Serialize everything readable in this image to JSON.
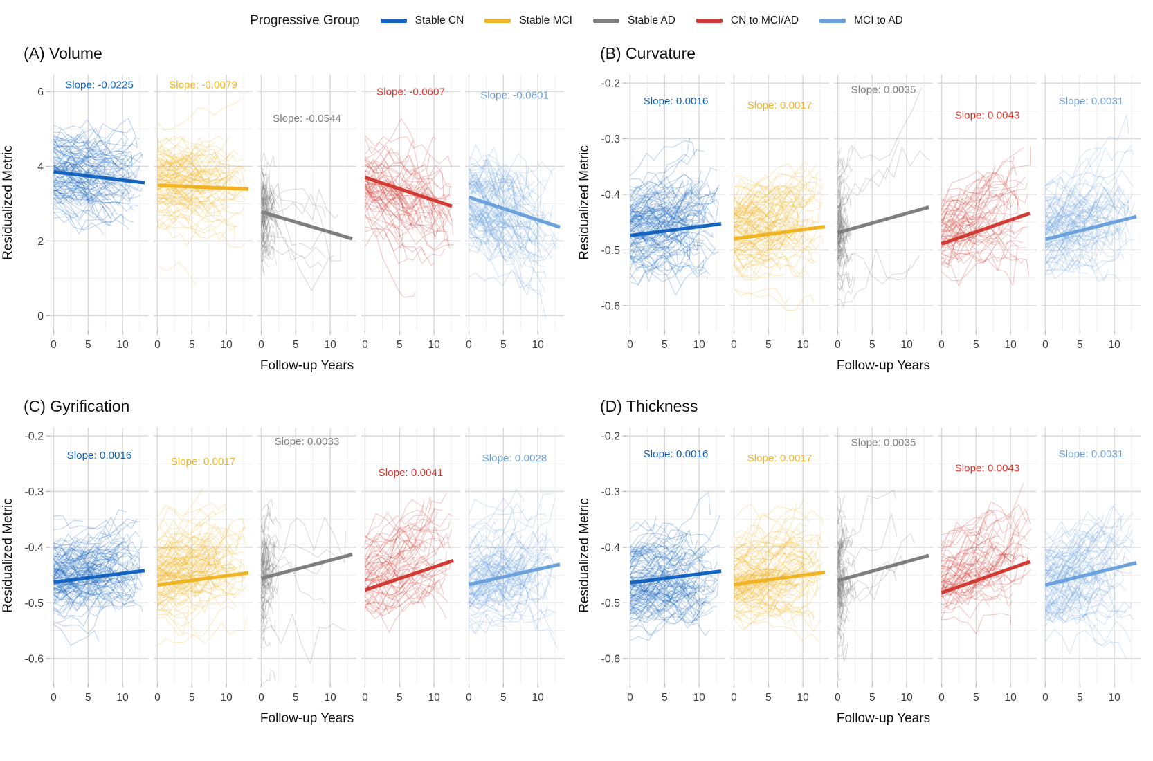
{
  "legend": {
    "title": "Progressive Group",
    "items": [
      {
        "label": "Stable CN",
        "color": "#1565C0"
      },
      {
        "label": "Stable MCI",
        "color": "#F0B323"
      },
      {
        "label": "Stable AD",
        "color": "#7F7F7F"
      },
      {
        "label": "CN to MCI/AD",
        "color": "#D23B33"
      },
      {
        "label": "MCI to AD",
        "color": "#6BA2DE"
      }
    ]
  },
  "chart_data": [
    {
      "id": "a",
      "type": "line",
      "title": "(A) Volume",
      "xlabel": "Follow-up Years",
      "ylabel": "Residualized Metric",
      "x_range": [
        -0.55,
        13.8
      ],
      "x_tick_values": [
        0,
        5,
        10
      ],
      "x_tick_labels": [
        "0",
        "5",
        "10"
      ],
      "x_minor": [
        2.5,
        7.5,
        12.5
      ],
      "y_range": [
        -0.4,
        6.45
      ],
      "y_tick_values": [
        0,
        2,
        4,
        6
      ],
      "y_tick_labels": [
        "0",
        "2",
        "4",
        "6"
      ],
      "y_minor": [
        1,
        3,
        5
      ],
      "grid": true,
      "legend_position": "top-shared",
      "facets": [
        {
          "group": "Stable CN",
          "color": "#1565C0",
          "slope": -0.0225,
          "slope_label": "Slope: -0.0225",
          "label_y": 6.18,
          "trend": {
            "x0": 0,
            "y0": 3.85,
            "x1": 13.2,
            "y1": 3.56
          },
          "sim": {
            "seed": 101,
            "n": 105,
            "center": 3.95,
            "sd": 0.52,
            "slope": -0.0225,
            "slope_sd": 0.03,
            "wiggle": 0.16,
            "fu_min": 2.5,
            "fu_max": 13,
            "short": false,
            "n_long": 0
          }
        },
        {
          "group": "Stable MCI",
          "color": "#F0B323",
          "slope": -0.0079,
          "slope_label": "Slope: -0.0079",
          "label_y": 6.18,
          "trend": {
            "x0": 0,
            "y0": 3.49,
            "x1": 13.2,
            "y1": 3.39
          },
          "sim": {
            "seed": 102,
            "n": 105,
            "center": 3.55,
            "sd": 0.6,
            "slope": -0.008,
            "slope_sd": 0.03,
            "wiggle": 0.16,
            "fu_min": 2.5,
            "fu_max": 13,
            "short": false,
            "n_long": 0
          }
        },
        {
          "group": "Stable AD",
          "color": "#7F7F7F",
          "slope": -0.0544,
          "slope_label": "Slope: -0.0544",
          "label_y": 5.28,
          "trend": {
            "x0": 0,
            "y0": 2.78,
            "x1": 13.2,
            "y1": 2.06
          },
          "sim": {
            "seed": 103,
            "n": 135,
            "center": 2.7,
            "sd": 0.62,
            "slope": -0.05,
            "slope_sd": 0.05,
            "wiggle": 0.3,
            "fu_min": 0.3,
            "fu_max": 2.2,
            "short": true,
            "n_long": 7
          }
        },
        {
          "group": "CN to MCI/AD",
          "color": "#D23B33",
          "slope": -0.0607,
          "slope_label": "Slope: -0.0607",
          "label_y": 6.0,
          "trend": {
            "x0": 0,
            "y0": 3.7,
            "x1": 12.6,
            "y1": 2.93
          },
          "sim": {
            "seed": 104,
            "n": 62,
            "center": 3.45,
            "sd": 0.58,
            "slope": -0.06,
            "slope_sd": 0.035,
            "wiggle": 0.24,
            "fu_min": 4,
            "fu_max": 13,
            "short": false,
            "n_long": 0
          }
        },
        {
          "group": "MCI to AD",
          "color": "#6BA2DE",
          "slope": -0.0601,
          "slope_label": "Slope: -0.0601",
          "label_y": 5.9,
          "trend": {
            "x0": 0,
            "y0": 3.17,
            "x1": 13.2,
            "y1": 2.37
          },
          "sim": {
            "seed": 105,
            "n": 92,
            "center": 3.0,
            "sd": 0.72,
            "slope": -0.06,
            "slope_sd": 0.04,
            "wiggle": 0.28,
            "fu_min": 3,
            "fu_max": 13,
            "short": false,
            "n_long": 0
          }
        }
      ]
    },
    {
      "id": "b",
      "type": "line",
      "title": "(B) Curvature",
      "xlabel": "Follow-up Years",
      "ylabel": "Residualized Metric",
      "x_range": [
        -0.55,
        13.8
      ],
      "x_tick_values": [
        0,
        5,
        10
      ],
      "x_tick_labels": [
        "0",
        "5",
        "10"
      ],
      "x_minor": [
        2.5,
        7.5,
        12.5
      ],
      "y_range": [
        -0.645,
        -0.185
      ],
      "y_tick_values": [
        -0.2,
        -0.3,
        -0.4,
        -0.5,
        -0.6
      ],
      "y_tick_labels": [
        "-0.2",
        "-0.3",
        "-0.4",
        "-0.5",
        "-0.6"
      ],
      "y_minor": [
        -0.25,
        -0.35,
        -0.45,
        -0.55
      ],
      "grid": true,
      "legend_position": "top-shared",
      "facets": [
        {
          "group": "Stable CN",
          "color": "#1565C0",
          "slope": 0.0016,
          "slope_label": "Slope: 0.0016",
          "label_y": -0.232,
          "trend": {
            "x0": 0,
            "y0": -0.474,
            "x1": 13.2,
            "y1": -0.453
          },
          "sim": {
            "seed": 111,
            "n": 110,
            "center": -0.468,
            "sd": 0.04,
            "slope": 0.0016,
            "slope_sd": 0.0025,
            "wiggle": 0.012,
            "fu_min": 3,
            "fu_max": 13,
            "short": false,
            "n_long": 0
          }
        },
        {
          "group": "Stable MCI",
          "color": "#F0B323",
          "slope": 0.0017,
          "slope_label": "Slope: 0.0017",
          "label_y": -0.24,
          "trend": {
            "x0": 0,
            "y0": -0.48,
            "x1": 13.2,
            "y1": -0.458
          },
          "sim": {
            "seed": 112,
            "n": 110,
            "center": -0.472,
            "sd": 0.04,
            "slope": 0.0017,
            "slope_sd": 0.0025,
            "wiggle": 0.012,
            "fu_min": 3,
            "fu_max": 13,
            "short": false,
            "n_long": 0
          }
        },
        {
          "group": "Stable AD",
          "color": "#7F7F7F",
          "slope": 0.0035,
          "slope_label": "Slope: 0.0035",
          "label_y": -0.212,
          "trend": {
            "x0": 0,
            "y0": -0.469,
            "x1": 13.2,
            "y1": -0.423
          },
          "sim": {
            "seed": 113,
            "n": 135,
            "center": -0.468,
            "sd": 0.05,
            "slope": 0.0035,
            "slope_sd": 0.004,
            "wiggle": 0.02,
            "fu_min": 0.3,
            "fu_max": 2.2,
            "short": true,
            "n_long": 5
          }
        },
        {
          "group": "CN to MCI/AD",
          "color": "#D23B33",
          "slope": 0.0043,
          "slope_label": "Slope: 0.0043",
          "label_y": -0.258,
          "trend": {
            "x0": 0,
            "y0": -0.489,
            "x1": 12.8,
            "y1": -0.434
          },
          "sim": {
            "seed": 114,
            "n": 60,
            "center": -0.465,
            "sd": 0.035,
            "slope": 0.0043,
            "slope_sd": 0.003,
            "wiggle": 0.014,
            "fu_min": 4,
            "fu_max": 13,
            "short": false,
            "n_long": 0
          }
        },
        {
          "group": "MCI to AD",
          "color": "#6BA2DE",
          "slope": 0.0031,
          "slope_label": "Slope: 0.0031",
          "label_y": -0.232,
          "trend": {
            "x0": 0,
            "y0": -0.481,
            "x1": 13.2,
            "y1": -0.44
          },
          "sim": {
            "seed": 115,
            "n": 85,
            "center": -0.468,
            "sd": 0.04,
            "slope": 0.0031,
            "slope_sd": 0.003,
            "wiggle": 0.015,
            "fu_min": 3,
            "fu_max": 13,
            "short": false,
            "n_long": 0
          }
        }
      ]
    },
    {
      "id": "c",
      "type": "line",
      "title": "(C) Gyrification",
      "xlabel": "Follow-up Years",
      "ylabel": "Residualized Metric",
      "x_range": [
        -0.55,
        13.8
      ],
      "x_tick_values": [
        0,
        5,
        10
      ],
      "x_tick_labels": [
        "0",
        "5",
        "10"
      ],
      "x_minor": [
        2.5,
        7.5,
        12.5
      ],
      "y_range": [
        -0.645,
        -0.185
      ],
      "y_tick_values": [
        -0.2,
        -0.3,
        -0.4,
        -0.5,
        -0.6
      ],
      "y_tick_labels": [
        "-0.2",
        "-0.3",
        "-0.4",
        "-0.5",
        "-0.6"
      ],
      "y_minor": [
        -0.25,
        -0.35,
        -0.45,
        -0.55
      ],
      "grid": true,
      "legend_position": "top-shared",
      "facets": [
        {
          "group": "Stable CN",
          "color": "#1565C0",
          "slope": 0.0016,
          "slope_label": "Slope: 0.0016",
          "label_y": -0.235,
          "trend": {
            "x0": 0,
            "y0": -0.463,
            "x1": 13.2,
            "y1": -0.442
          },
          "sim": {
            "seed": 121,
            "n": 110,
            "center": -0.458,
            "sd": 0.04,
            "slope": 0.0016,
            "slope_sd": 0.0025,
            "wiggle": 0.012,
            "fu_min": 3,
            "fu_max": 13,
            "short": false,
            "n_long": 0
          }
        },
        {
          "group": "Stable MCI",
          "color": "#F0B323",
          "slope": 0.0017,
          "slope_label": "Slope: 0.0017",
          "label_y": -0.246,
          "trend": {
            "x0": 0,
            "y0": -0.468,
            "x1": 13.2,
            "y1": -0.446
          },
          "sim": {
            "seed": 122,
            "n": 110,
            "center": -0.462,
            "sd": 0.04,
            "slope": 0.0017,
            "slope_sd": 0.0025,
            "wiggle": 0.012,
            "fu_min": 3,
            "fu_max": 13,
            "short": false,
            "n_long": 0
          }
        },
        {
          "group": "Stable AD",
          "color": "#7F7F7F",
          "slope": 0.0033,
          "slope_label": "Slope: 0.0033",
          "label_y": -0.21,
          "trend": {
            "x0": 0,
            "y0": -0.456,
            "x1": 13.2,
            "y1": -0.413
          },
          "sim": {
            "seed": 123,
            "n": 135,
            "center": -0.458,
            "sd": 0.05,
            "slope": 0.0033,
            "slope_sd": 0.004,
            "wiggle": 0.02,
            "fu_min": 0.3,
            "fu_max": 2.2,
            "short": true,
            "n_long": 5
          }
        },
        {
          "group": "CN to MCI/AD",
          "color": "#D23B33",
          "slope": 0.0041,
          "slope_label": "Slope: 0.0041",
          "label_y": -0.266,
          "trend": {
            "x0": 0,
            "y0": -0.477,
            "x1": 12.8,
            "y1": -0.424
          },
          "sim": {
            "seed": 124,
            "n": 60,
            "center": -0.458,
            "sd": 0.035,
            "slope": 0.0041,
            "slope_sd": 0.003,
            "wiggle": 0.014,
            "fu_min": 4,
            "fu_max": 13,
            "short": false,
            "n_long": 0
          }
        },
        {
          "group": "MCI to AD",
          "color": "#6BA2DE",
          "slope": 0.0028,
          "slope_label": "Slope: 0.0028",
          "label_y": -0.24,
          "trend": {
            "x0": 0,
            "y0": -0.467,
            "x1": 13.2,
            "y1": -0.431
          },
          "sim": {
            "seed": 125,
            "n": 85,
            "center": -0.462,
            "sd": 0.04,
            "slope": 0.0028,
            "slope_sd": 0.003,
            "wiggle": 0.015,
            "fu_min": 3,
            "fu_max": 13,
            "short": false,
            "n_long": 0
          }
        }
      ]
    },
    {
      "id": "d",
      "type": "line",
      "title": "(D) Thickness",
      "xlabel": "Follow-up Years",
      "ylabel": "Residualized Metric",
      "x_range": [
        -0.55,
        13.8
      ],
      "x_tick_values": [
        0,
        5,
        10
      ],
      "x_tick_labels": [
        "0",
        "5",
        "10"
      ],
      "x_minor": [
        2.5,
        7.5,
        12.5
      ],
      "y_range": [
        -0.645,
        -0.185
      ],
      "y_tick_values": [
        -0.2,
        -0.3,
        -0.4,
        -0.5,
        -0.6
      ],
      "y_tick_labels": [
        "-0.2",
        "-0.3",
        "-0.4",
        "-0.5",
        "-0.6"
      ],
      "y_minor": [
        -0.25,
        -0.35,
        -0.45,
        -0.55
      ],
      "grid": true,
      "legend_position": "top-shared",
      "facets": [
        {
          "group": "Stable CN",
          "color": "#1565C0",
          "slope": 0.0016,
          "slope_label": "Slope: 0.0016",
          "label_y": -0.232,
          "trend": {
            "x0": 0,
            "y0": -0.464,
            "x1": 13.2,
            "y1": -0.443
          },
          "sim": {
            "seed": 131,
            "n": 110,
            "center": -0.46,
            "sd": 0.04,
            "slope": 0.0016,
            "slope_sd": 0.0025,
            "wiggle": 0.012,
            "fu_min": 3,
            "fu_max": 13,
            "short": false,
            "n_long": 0
          }
        },
        {
          "group": "Stable MCI",
          "color": "#F0B323",
          "slope": 0.0017,
          "slope_label": "Slope: 0.0017",
          "label_y": -0.24,
          "trend": {
            "x0": 0,
            "y0": -0.467,
            "x1": 13.2,
            "y1": -0.445
          },
          "sim": {
            "seed": 132,
            "n": 110,
            "center": -0.462,
            "sd": 0.04,
            "slope": 0.0017,
            "slope_sd": 0.0025,
            "wiggle": 0.012,
            "fu_min": 3,
            "fu_max": 13,
            "short": false,
            "n_long": 0
          }
        },
        {
          "group": "Stable AD",
          "color": "#7F7F7F",
          "slope": 0.0035,
          "slope_label": "Slope: 0.0035",
          "label_y": -0.212,
          "trend": {
            "x0": 0,
            "y0": -0.46,
            "x1": 13.2,
            "y1": -0.415
          },
          "sim": {
            "seed": 133,
            "n": 135,
            "center": -0.46,
            "sd": 0.05,
            "slope": 0.0035,
            "slope_sd": 0.004,
            "wiggle": 0.02,
            "fu_min": 0.3,
            "fu_max": 2.2,
            "short": true,
            "n_long": 5
          }
        },
        {
          "group": "CN to MCI/AD",
          "color": "#D23B33",
          "slope": 0.0043,
          "slope_label": "Slope: 0.0043",
          "label_y": -0.258,
          "trend": {
            "x0": 0,
            "y0": -0.482,
            "x1": 12.8,
            "y1": -0.426
          },
          "sim": {
            "seed": 134,
            "n": 60,
            "center": -0.46,
            "sd": 0.035,
            "slope": 0.0043,
            "slope_sd": 0.003,
            "wiggle": 0.014,
            "fu_min": 4,
            "fu_max": 13,
            "short": false,
            "n_long": 0
          }
        },
        {
          "group": "MCI to AD",
          "color": "#6BA2DE",
          "slope": 0.0031,
          "slope_label": "Slope: 0.0031",
          "label_y": -0.232,
          "trend": {
            "x0": 0,
            "y0": -0.468,
            "x1": 13.2,
            "y1": -0.428
          },
          "sim": {
            "seed": 135,
            "n": 85,
            "center": -0.462,
            "sd": 0.04,
            "slope": 0.0031,
            "slope_sd": 0.003,
            "wiggle": 0.015,
            "fu_min": 3,
            "fu_max": 13,
            "short": false,
            "n_long": 0
          }
        }
      ]
    }
  ],
  "style": {
    "grid_major": "#D9D9D9",
    "grid_minor": "#ECECEC",
    "tick_mark": "#B3B3B3",
    "tick_text": "#3C3C3C",
    "title_text": "#111111",
    "axis_label_text": "#111111"
  }
}
